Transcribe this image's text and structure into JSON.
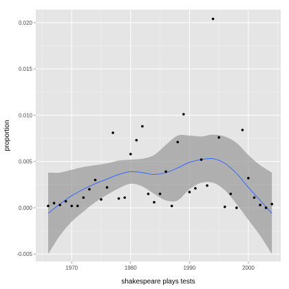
{
  "chart_data": {
    "type": "scatter",
    "title": "",
    "xlabel": "shakespeare plays tests",
    "ylabel": "proportion",
    "xlim": [
      1963.9,
      2005.5
    ],
    "ylim": [
      -0.0058,
      0.0214
    ],
    "x_ticks": [
      1970,
      1980,
      1990,
      2000
    ],
    "x_tick_labels": [
      "1970",
      "1980",
      "1990",
      "2000"
    ],
    "y_ticks": [
      -0.005,
      0.0,
      0.005,
      0.01,
      0.015,
      0.02
    ],
    "y_tick_labels": [
      "-0.005",
      "0.000",
      "0.005",
      "0.010",
      "0.015",
      "0.020"
    ],
    "grid": true,
    "points": {
      "x": [
        1966,
        1967,
        1968,
        1969,
        1970,
        1971,
        1972,
        1973,
        1974,
        1975,
        1976,
        1977,
        1978,
        1979,
        1980,
        1981,
        1982,
        1983,
        1984,
        1985,
        1986,
        1987,
        1988,
        1989,
        1990,
        1991,
        1992,
        1993,
        1994,
        1995,
        1996,
        1997,
        1998,
        1999,
        2000,
        2001,
        2002,
        2003,
        2004
      ],
      "y": [
        0.0002,
        0.0005,
        0.0003,
        0.0007,
        0.0002,
        0.0002,
        0.0011,
        0.002,
        0.003,
        0.0009,
        0.0022,
        0.0081,
        0.001,
        0.0011,
        0.0058,
        0.0073,
        0.0088,
        0.0015,
        0.0006,
        0.0015,
        0.0039,
        0.0002,
        0.0071,
        0.0101,
        0.0017,
        0.0021,
        0.0052,
        0.0024,
        0.0204,
        0.0076,
        0.0001,
        0.0015,
        0.0,
        0.0084,
        0.0032,
        0.0011,
        0.0003,
        0.0,
        0.0004
      ]
    },
    "smooth": {
      "x": [
        1966,
        1968,
        1970,
        1972,
        1974,
        1976,
        1978,
        1980,
        1982,
        1984,
        1986,
        1988,
        1990,
        1992,
        1994,
        1996,
        1998,
        2000,
        2002,
        2004
      ],
      "y": [
        -0.0006,
        0.0004,
        0.0013,
        0.002,
        0.0026,
        0.0031,
        0.0036,
        0.0039,
        0.0038,
        0.0036,
        0.0038,
        0.0043,
        0.0049,
        0.0052,
        0.0053,
        0.0048,
        0.0037,
        0.0022,
        0.0008,
        -0.0006
      ],
      "lower": [
        -0.005,
        -0.003,
        -0.0015,
        -0.0004,
        0.0006,
        0.0014,
        0.0021,
        0.0026,
        0.0023,
        0.0015,
        0.0008,
        0.0008,
        0.002,
        0.0027,
        0.0027,
        0.0019,
        0.0004,
        -0.0013,
        -0.003,
        -0.005
      ],
      "upper": [
        0.0038,
        0.0038,
        0.0041,
        0.0044,
        0.0046,
        0.0048,
        0.0051,
        0.0052,
        0.0053,
        0.0057,
        0.0068,
        0.0078,
        0.0078,
        0.0077,
        0.0079,
        0.0077,
        0.007,
        0.0057,
        0.0046,
        0.0038
      ]
    },
    "colors": {
      "panel": "#e5e5e5",
      "grid_major": "#ffffff",
      "grid_minor": "#f2f2f2",
      "ribbon": "#999999",
      "line": "#3366ff",
      "point": "#000000",
      "tick_text": "#4d4d4d"
    }
  }
}
